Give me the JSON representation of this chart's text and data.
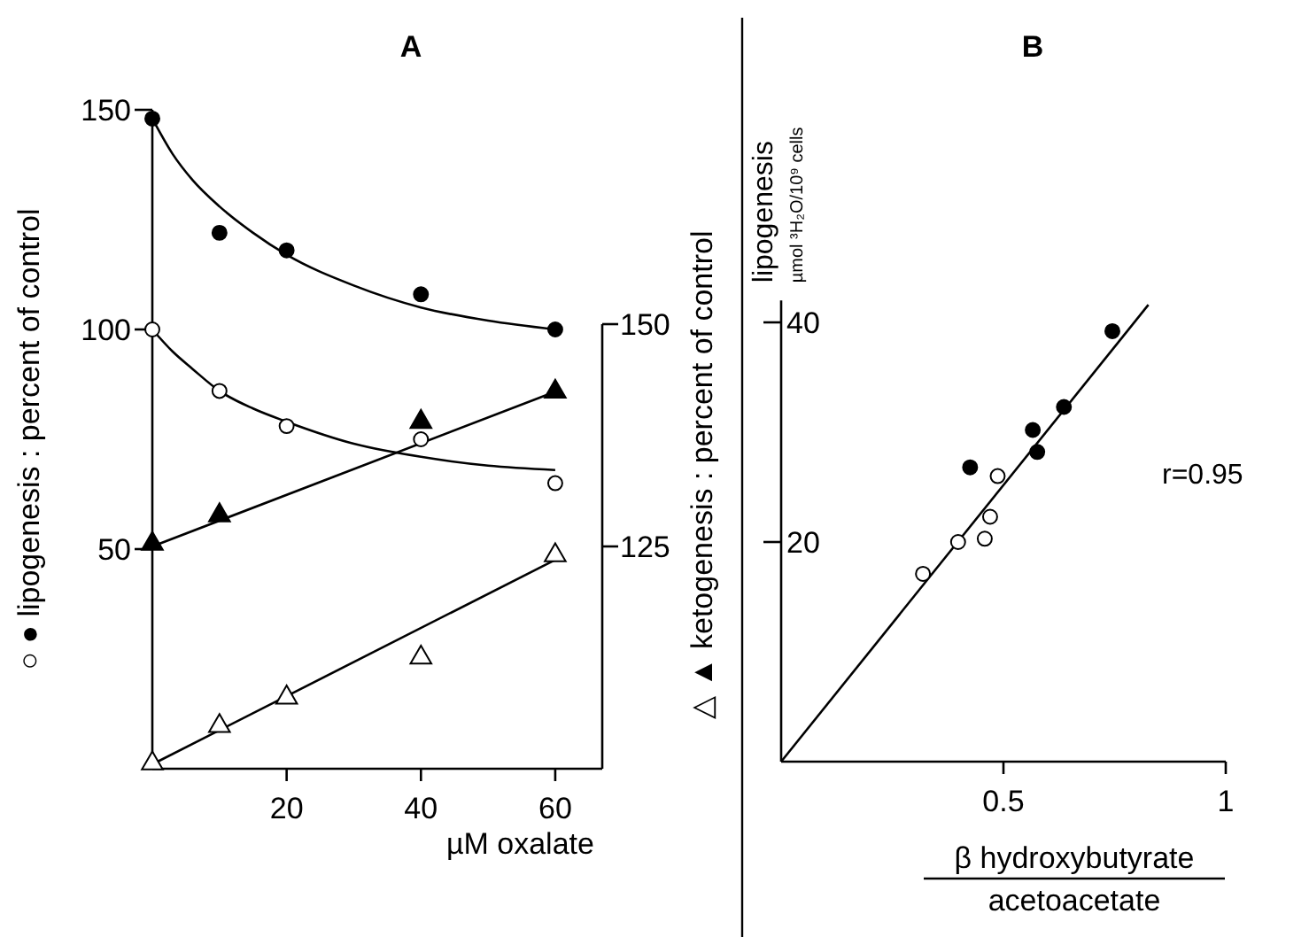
{
  "chart_data": [
    {
      "type": "scatter",
      "title": "A",
      "xlabel": "µM oxalate",
      "ylabel": "○ ● lipogenesis : percent of control",
      "y2label": "△ ▲ ketogenesis : percent of control",
      "xlim": [
        0,
        67
      ],
      "xticks": [
        20,
        40,
        60
      ],
      "ylim": [
        0,
        150
      ],
      "yticks": [
        50,
        100,
        150
      ],
      "y2lim": [
        100,
        150
      ],
      "y2ticks": [
        125,
        150
      ],
      "series": [
        {
          "type": "line",
          "marker": "none",
          "color": "#000000",
          "x": [
            0,
            3,
            6,
            10,
            15,
            20,
            30,
            40,
            50,
            60
          ],
          "values": [
            148,
            140,
            134,
            128,
            122,
            117,
            110,
            105,
            102,
            100
          ]
        },
        {
          "type": "line",
          "marker": "none",
          "color": "#000000",
          "x": [
            0,
            3,
            6,
            10,
            15,
            20,
            30,
            40,
            50,
            60
          ],
          "values": [
            100,
            95,
            91,
            86,
            82,
            79,
            74,
            71,
            69,
            68
          ]
        },
        {
          "type": "line",
          "marker": "none",
          "color": "#000000",
          "axis": "y2",
          "x": [
            0,
            60
          ],
          "values": [
            125,
            142.4
          ]
        },
        {
          "type": "line",
          "marker": "none",
          "color": "#000000",
          "axis": "y2",
          "x": [
            0,
            60
          ],
          "values": [
            100.5,
            123.5
          ]
        },
        {
          "type": "scatter",
          "marker": "circle",
          "color": "#000000",
          "x": [
            0,
            10,
            20,
            40,
            60
          ],
          "values": [
            148,
            122,
            118,
            108,
            100
          ]
        },
        {
          "type": "scatter",
          "marker": "circle",
          "color": "#ffffff",
          "x": [
            0,
            10,
            20,
            40,
            60
          ],
          "values": [
            100,
            86,
            78,
            75,
            65
          ]
        },
        {
          "type": "scatter",
          "marker": "triangle",
          "color": "#000000",
          "axis": "y2",
          "x": [
            0,
            10,
            40,
            60
          ],
          "values": [
            125.3,
            128.5,
            139,
            142.4
          ]
        },
        {
          "type": "scatter",
          "marker": "triangle",
          "color": "#ffffff",
          "axis": "y2",
          "x": [
            0,
            10,
            20,
            40,
            60
          ],
          "values": [
            100.6,
            104.8,
            108,
            112.5,
            124
          ]
        }
      ]
    },
    {
      "type": "scatter",
      "title": "B",
      "xlabel": "β hydroxybutyrate\nacetoacetate",
      "ylabel": "lipogenesis\nµmol ³H₂O/10⁹ cells",
      "xlim": [
        0,
        1
      ],
      "xticks": [
        0.5,
        1
      ],
      "ylim": [
        0,
        42
      ],
      "yticks": [
        20,
        40
      ],
      "annotations": [
        "r=0.95"
      ],
      "series": [
        {
          "type": "line",
          "marker": "none",
          "color": "#000000",
          "x": [
            0,
            0.826
          ],
          "values": [
            0,
            41.6
          ]
        },
        {
          "type": "scatter",
          "marker": "circle",
          "color": "#000000",
          "x": [
            0.745,
            0.636,
            0.566,
            0.576,
            0.425
          ],
          "values": [
            39.2,
            32.3,
            30.2,
            28.2,
            26.8
          ]
        },
        {
          "type": "scatter",
          "marker": "circle",
          "color": "#ffffff",
          "x": [
            0.487,
            0.47,
            0.458,
            0.398,
            0.319
          ],
          "values": [
            26,
            22.3,
            20.3,
            20,
            17.1
          ]
        }
      ]
    }
  ]
}
